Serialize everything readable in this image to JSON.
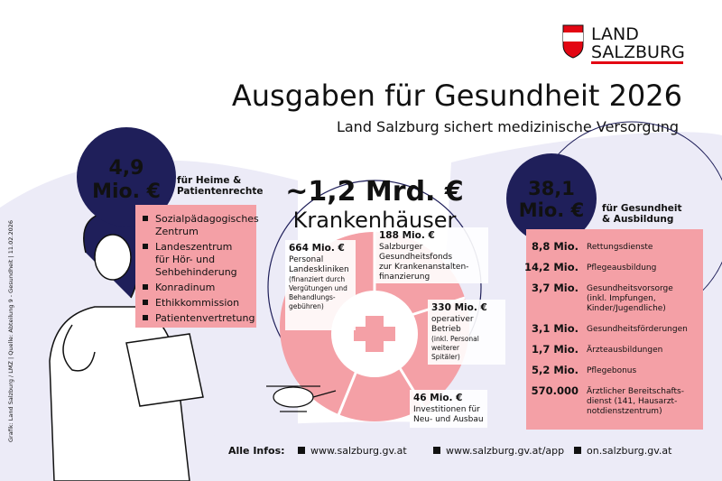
{
  "logo": {
    "line1": "LAND",
    "line2": "SALZBURG"
  },
  "header": {
    "title": "Ausgaben für Gesundheit 2026",
    "subtitle": "Land Salzburg sichert medizinische Versorgung"
  },
  "credit": "Grafik: Land Salzburg / LMZ | Quelle: Abteilung 9 - Gesundheit | 11.02.2026",
  "left": {
    "amount": [
      "4,9",
      "Mio. €"
    ],
    "label": [
      "für Heime &",
      "Patientenrechte"
    ],
    "items": [
      [
        "Sozialpädagogisches",
        "Zentrum"
      ],
      [
        "Landeszentrum",
        "für Hör- und",
        "Sehbehinderung"
      ],
      [
        "Konradinum"
      ],
      [
        "Ethikkommission"
      ],
      [
        "Patientenvertretung"
      ]
    ]
  },
  "center": {
    "amount": "~1,2 Mrd. €",
    "label": "Krankenhäuser",
    "segments": [
      {
        "amount": "664 Mio. €",
        "lines": [
          "Personal",
          "Landeskliniken"
        ],
        "note": [
          "(finanziert durch",
          "Vergütungen und",
          "Behandlungs-",
          "gebühren)"
        ]
      },
      {
        "amount": "188 Mio. €",
        "lines": [
          "Salzburger",
          "Gesundheitsfonds",
          "zur Krankenanstalten-",
          "finanzierung"
        ],
        "note": []
      },
      {
        "amount": "330 Mio. €",
        "lines": [
          "operativer",
          "Betrieb"
        ],
        "note": [
          "(inkl. Personal",
          "weiterer",
          "Spitäler)"
        ]
      },
      {
        "amount": "46 Mio. €",
        "lines": [
          "Investitionen für",
          "Neu- und Ausbau"
        ],
        "note": []
      }
    ]
  },
  "right": {
    "amount": [
      "38,1",
      "Mio. €"
    ],
    "label": [
      "für Gesundheit",
      "& Ausbildung"
    ],
    "rows": [
      {
        "amount": "8,8 Mio.",
        "lines": [
          "Rettungsdienste"
        ]
      },
      {
        "amount": "14,2 Mio.",
        "lines": [
          "Pflegeausbildung"
        ]
      },
      {
        "amount": "3,7 Mio.",
        "lines": [
          "Gesundheitsvorsorge",
          "(inkl. Impfungen,",
          "Kinder/Jugendliche)"
        ]
      },
      {
        "amount": "3,1 Mio.",
        "lines": [
          "Gesundheitsförderungen"
        ]
      },
      {
        "amount": "1,7 Mio.",
        "lines": [
          "Ärzteausbildungen"
        ]
      },
      {
        "amount": "5,2 Mio.",
        "lines": [
          "Pflegebonus"
        ]
      },
      {
        "amount": "570.000",
        "lines": [
          "Ärztlicher Bereitschafts-",
          "dienst (141, Hausarzt-",
          "notdienstzentrum)"
        ]
      }
    ]
  },
  "footer": {
    "label": "Alle Infos:",
    "links": [
      "www.salzburg.gv.at",
      "www.salzburg.gv.at/app",
      "on.salzburg.gv.at"
    ]
  }
}
